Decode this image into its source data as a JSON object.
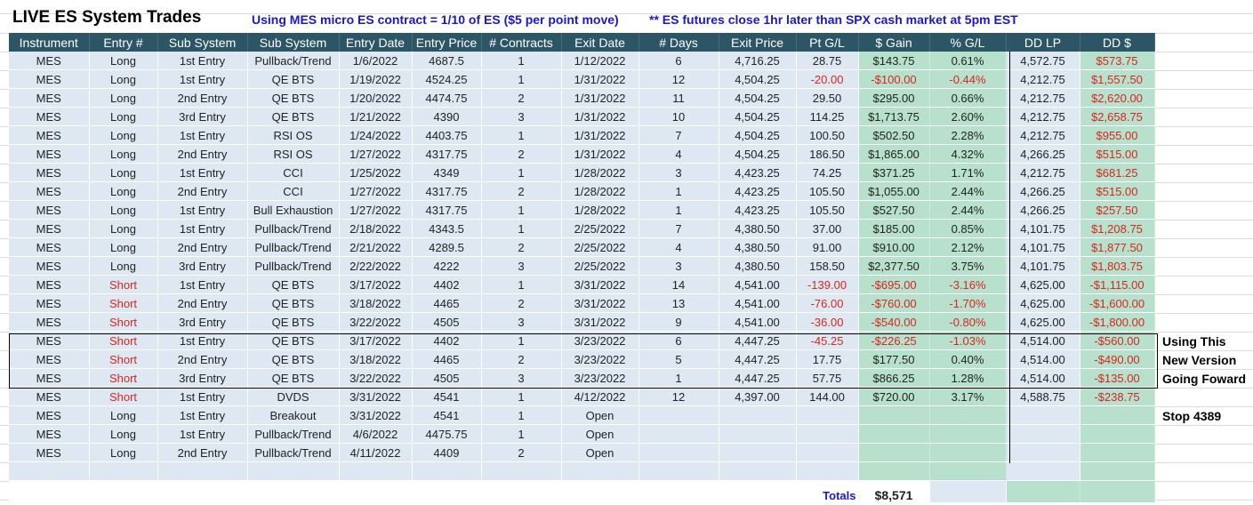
{
  "title": "LIVE ES System Trades",
  "note_mes": "Using MES micro ES contract = 1/10 of ES ($5 per point move)",
  "note_close": "** ES futures close 1hr later than SPX cash market at 5pm EST",
  "headers": [
    "Instrument",
    "Entry #",
    "Sub System",
    "Sub System",
    "Entry Date",
    "Entry Price",
    "# Contracts",
    "Exit Date",
    "# Days",
    "Exit Price",
    "Pt G/L",
    "$ Gain",
    "% G/L",
    "DD LP",
    "DD $"
  ],
  "rows": [
    [
      "MES",
      "Long",
      "1st Entry",
      "Pullback/Trend",
      "1/6/2022",
      "4687.5",
      "1",
      "1/12/2022",
      "6",
      "4,716.25",
      "28.75",
      "$143.75",
      "0.61%",
      "4,572.75",
      "$573.75"
    ],
    [
      "MES",
      "Long",
      "1st Entry",
      "QE BTS",
      "1/19/2022",
      "4524.25",
      "1",
      "1/31/2022",
      "12",
      "4,504.25",
      "-20.00",
      "-$100.00",
      "-0.44%",
      "4,212.75",
      "$1,557.50"
    ],
    [
      "MES",
      "Long",
      "2nd Entry",
      "QE BTS",
      "1/20/2022",
      "4474.75",
      "2",
      "1/31/2022",
      "11",
      "4,504.25",
      "29.50",
      "$295.00",
      "0.66%",
      "4,212.75",
      "$2,620.00"
    ],
    [
      "MES",
      "Long",
      "3rd Entry",
      "QE BTS",
      "1/21/2022",
      "4390",
      "3",
      "1/31/2022",
      "10",
      "4,504.25",
      "114.25",
      "$1,713.75",
      "2.60%",
      "4,212.75",
      "$2,658.75"
    ],
    [
      "MES",
      "Long",
      "1st Entry",
      "RSI OS",
      "1/24/2022",
      "4403.75",
      "1",
      "1/31/2022",
      "7",
      "4,504.25",
      "100.50",
      "$502.50",
      "2.28%",
      "4,212.75",
      "$955.00"
    ],
    [
      "MES",
      "Long",
      "2nd Entry",
      "RSI OS",
      "1/27/2022",
      "4317.75",
      "2",
      "1/31/2022",
      "4",
      "4,504.25",
      "186.50",
      "$1,865.00",
      "4.32%",
      "4,266.25",
      "$515.00"
    ],
    [
      "MES",
      "Long",
      "1st Entry",
      "CCI",
      "1/25/2022",
      "4349",
      "1",
      "1/28/2022",
      "3",
      "4,423.25",
      "74.25",
      "$371.25",
      "1.71%",
      "4,212.75",
      "$681.25"
    ],
    [
      "MES",
      "Long",
      "2nd Entry",
      "CCI",
      "1/27/2022",
      "4317.75",
      "2",
      "1/28/2022",
      "1",
      "4,423.25",
      "105.50",
      "$1,055.00",
      "2.44%",
      "4,266.25",
      "$515.00"
    ],
    [
      "MES",
      "Long",
      "1st Entry",
      "Bull Exhaustion",
      "1/27/2022",
      "4317.75",
      "1",
      "1/28/2022",
      "1",
      "4,423.25",
      "105.50",
      "$527.50",
      "2.44%",
      "4,266.25",
      "$257.50"
    ],
    [
      "MES",
      "Long",
      "1st Entry",
      "Pullback/Trend",
      "2/18/2022",
      "4343.5",
      "1",
      "2/25/2022",
      "7",
      "4,380.50",
      "37.00",
      "$185.00",
      "0.85%",
      "4,101.75",
      "$1,208.75"
    ],
    [
      "MES",
      "Long",
      "2nd Entry",
      "Pullback/Trend",
      "2/21/2022",
      "4289.5",
      "2",
      "2/25/2022",
      "4",
      "4,380.50",
      "91.00",
      "$910.00",
      "2.12%",
      "4,101.75",
      "$1,877.50"
    ],
    [
      "MES",
      "Long",
      "3rd Entry",
      "Pullback/Trend",
      "2/22/2022",
      "4222",
      "3",
      "2/25/2022",
      "3",
      "4,380.50",
      "158.50",
      "$2,377.50",
      "3.75%",
      "4,101.75",
      "$1,803.75"
    ],
    [
      "MES",
      "Short",
      "1st Entry",
      "QE BTS",
      "3/17/2022",
      "4402",
      "1",
      "3/31/2022",
      "14",
      "4,541.00",
      "-139.00",
      "-$695.00",
      "-3.16%",
      "4,625.00",
      "-$1,115.00"
    ],
    [
      "MES",
      "Short",
      "2nd Entry",
      "QE BTS",
      "3/18/2022",
      "4465",
      "2",
      "3/31/2022",
      "13",
      "4,541.00",
      "-76.00",
      "-$760.00",
      "-1.70%",
      "4,625.00",
      "-$1,600.00"
    ],
    [
      "MES",
      "Short",
      "3rd Entry",
      "QE BTS",
      "3/22/2022",
      "4505",
      "3",
      "3/31/2022",
      "9",
      "4,541.00",
      "-36.00",
      "-$540.00",
      "-0.80%",
      "4,625.00",
      "-$1,800.00"
    ],
    [
      "MES",
      "Short",
      "1st Entry",
      "QE BTS",
      "3/17/2022",
      "4402",
      "1",
      "3/23/2022",
      "6",
      "4,447.25",
      "-45.25",
      "-$226.25",
      "-1.03%",
      "4,514.00",
      "-$560.00"
    ],
    [
      "MES",
      "Short",
      "2nd Entry",
      "QE BTS",
      "3/18/2022",
      "4465",
      "2",
      "3/23/2022",
      "5",
      "4,447.25",
      "17.75",
      "$177.50",
      "0.40%",
      "4,514.00",
      "-$490.00"
    ],
    [
      "MES",
      "Short",
      "3rd Entry",
      "QE BTS",
      "3/22/2022",
      "4505",
      "3",
      "3/23/2022",
      "1",
      "4,447.25",
      "57.75",
      "$866.25",
      "1.28%",
      "4,514.00",
      "-$135.00"
    ],
    [
      "MES",
      "Short",
      "1st Entry",
      "DVDS",
      "3/31/2022",
      "4541",
      "1",
      "4/12/2022",
      "12",
      "4,397.00",
      "144.00",
      "$720.00",
      "3.17%",
      "4,588.75",
      "-$238.75"
    ],
    [
      "MES",
      "Long",
      "1st Entry",
      "Breakout",
      "3/31/2022",
      "4541",
      "1",
      "Open",
      "",
      "",
      "",
      "",
      "",
      "",
      ""
    ],
    [
      "MES",
      "Long",
      "1st Entry",
      "Pullback/Trend",
      "4/6/2022",
      "4475.75",
      "1",
      "Open",
      "",
      "",
      "",
      "",
      "",
      "",
      ""
    ],
    [
      "MES",
      "Long",
      "2nd Entry",
      "Pullback/Trend",
      "4/11/2022",
      "4409",
      "2",
      "Open",
      "",
      "",
      "",
      "",
      "",
      "",
      ""
    ],
    [
      "",
      "",
      "",
      "",
      "",
      "",
      "",
      "",
      "",
      "",
      "",
      "",
      "",
      "",
      ""
    ]
  ],
  "totals": {
    "label": "Totals",
    "value": "$8,571"
  },
  "side_notes": {
    "line1": "Using This",
    "line2": "New Version",
    "line3": "Going Foward",
    "stop": "Stop 4389"
  },
  "colors": {
    "header_bg": "#2c5665",
    "cell_bg": "#dde8f2",
    "gain_bg": "#b7e1cd",
    "negative": "#d6261e",
    "note_blue": "#1a17c9"
  }
}
